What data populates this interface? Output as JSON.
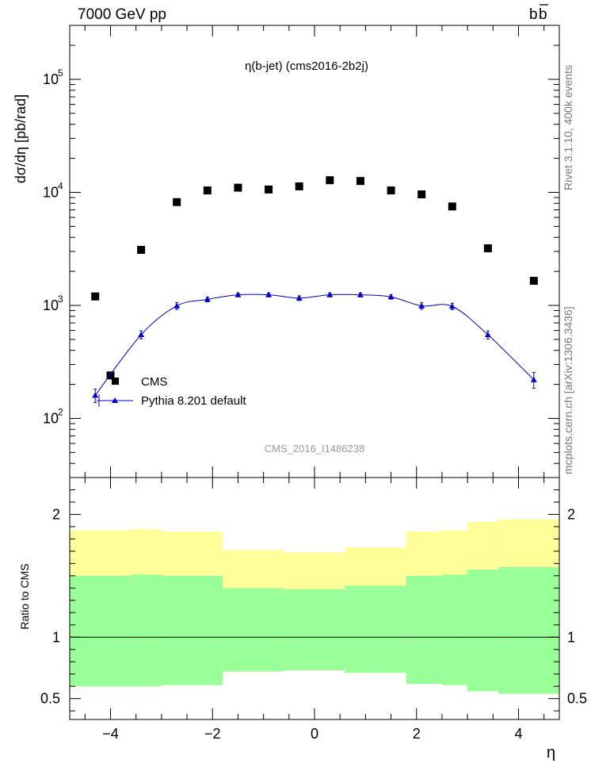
{
  "header": {
    "left": "7000 GeV pp",
    "right": "b",
    "right_bar": "b"
  },
  "side_texts": {
    "top": "Rivet 3.1.10, 400k events",
    "bottom": "mcplots.cern.ch [arXiv:1306.3436]"
  },
  "chart_data": [
    {
      "type": "scatter",
      "title": "η(b-jet) (cms2016-2b2j)",
      "watermark": "CMS_2016_I1486238",
      "ylabel": "dσ/dη [pb/rad]",
      "yscale": "log",
      "ylim": [
        30,
        300000
      ],
      "xlim": [
        -4.8,
        4.8
      ],
      "y_ticks": [
        {
          "v": 100,
          "base": "10",
          "exp": "2"
        },
        {
          "v": 1000,
          "base": "10",
          "exp": "3"
        },
        {
          "v": 10000,
          "base": "10",
          "exp": "4"
        },
        {
          "v": 100000,
          "base": "10",
          "exp": "5"
        }
      ],
      "legend": {
        "position": "bottom-left"
      },
      "series": [
        {
          "name": "CMS",
          "marker": "square",
          "color": "#000000",
          "x": [
            -4.3,
            -4.0,
            -3.4,
            -2.7,
            -2.1,
            -1.5,
            -0.9,
            -0.3,
            0.3,
            0.9,
            1.5,
            2.1,
            2.7,
            3.4,
            4.3
          ],
          "y": [
            1200,
            240,
            3100,
            8200,
            10400,
            11000,
            10600,
            11300,
            12800,
            12600,
            10400,
            9600,
            7500,
            3200,
            1650
          ]
        },
        {
          "name": "Pythia 8.201 default",
          "marker": "triangle",
          "color": "#0000cc",
          "x": [
            -4.3,
            -3.4,
            -2.7,
            -2.1,
            -1.5,
            -0.9,
            -0.3,
            0.3,
            0.9,
            1.5,
            2.1,
            2.7,
            3.4,
            4.3
          ],
          "y": [
            160,
            550,
            990,
            1130,
            1240,
            1240,
            1160,
            1240,
            1240,
            1190,
            990,
            980,
            550,
            220
          ],
          "yerr": [
            22,
            45,
            70,
            55,
            50,
            50,
            55,
            50,
            50,
            55,
            65,
            65,
            45,
            35
          ]
        }
      ]
    },
    {
      "type": "area",
      "ylabel": "Ratio to CMS",
      "xlabel": "η",
      "xlim": [
        -4.8,
        4.8
      ],
      "ylim": [
        0.33,
        2.3
      ],
      "x_ticks": [
        -4,
        -2,
        0,
        2,
        4
      ],
      "y_ticks": [
        {
          "v": 0.5,
          "label": "0.5"
        },
        {
          "v": 1,
          "label": "1"
        },
        {
          "v": 2,
          "label": "2"
        }
      ],
      "reference_line": 1,
      "bins": [
        {
          "x0": -4.8,
          "x1": -3.6,
          "outer": [
            0.6,
            1.87
          ],
          "inner": [
            0.6,
            1.5
          ]
        },
        {
          "x0": -3.6,
          "x1": -3.0,
          "outer": [
            0.6,
            1.88
          ],
          "inner": [
            0.6,
            1.51
          ]
        },
        {
          "x0": -3.0,
          "x1": -1.8,
          "outer": [
            0.61,
            1.86
          ],
          "inner": [
            0.61,
            1.5
          ]
        },
        {
          "x0": -1.8,
          "x1": -0.6,
          "outer": [
            0.72,
            1.71
          ],
          "inner": [
            0.72,
            1.4
          ]
        },
        {
          "x0": -0.6,
          "x1": 0.6,
          "outer": [
            0.73,
            1.69
          ],
          "inner": [
            0.73,
            1.39
          ]
        },
        {
          "x0": 0.6,
          "x1": 1.8,
          "outer": [
            0.71,
            1.73
          ],
          "inner": [
            0.71,
            1.42
          ]
        },
        {
          "x0": 1.8,
          "x1": 2.5,
          "outer": [
            0.62,
            1.86
          ],
          "inner": [
            0.62,
            1.5
          ]
        },
        {
          "x0": 2.5,
          "x1": 3.0,
          "outer": [
            0.61,
            1.87
          ],
          "inner": [
            0.61,
            1.51
          ]
        },
        {
          "x0": 3.0,
          "x1": 3.6,
          "outer": [
            0.56,
            1.94
          ],
          "inner": [
            0.56,
            1.55
          ]
        },
        {
          "x0": 3.6,
          "x1": 4.8,
          "outer": [
            0.54,
            1.96
          ],
          "inner": [
            0.54,
            1.57
          ]
        }
      ],
      "colors": {
        "outer": "#ffff99",
        "inner": "#99ff99"
      }
    }
  ]
}
